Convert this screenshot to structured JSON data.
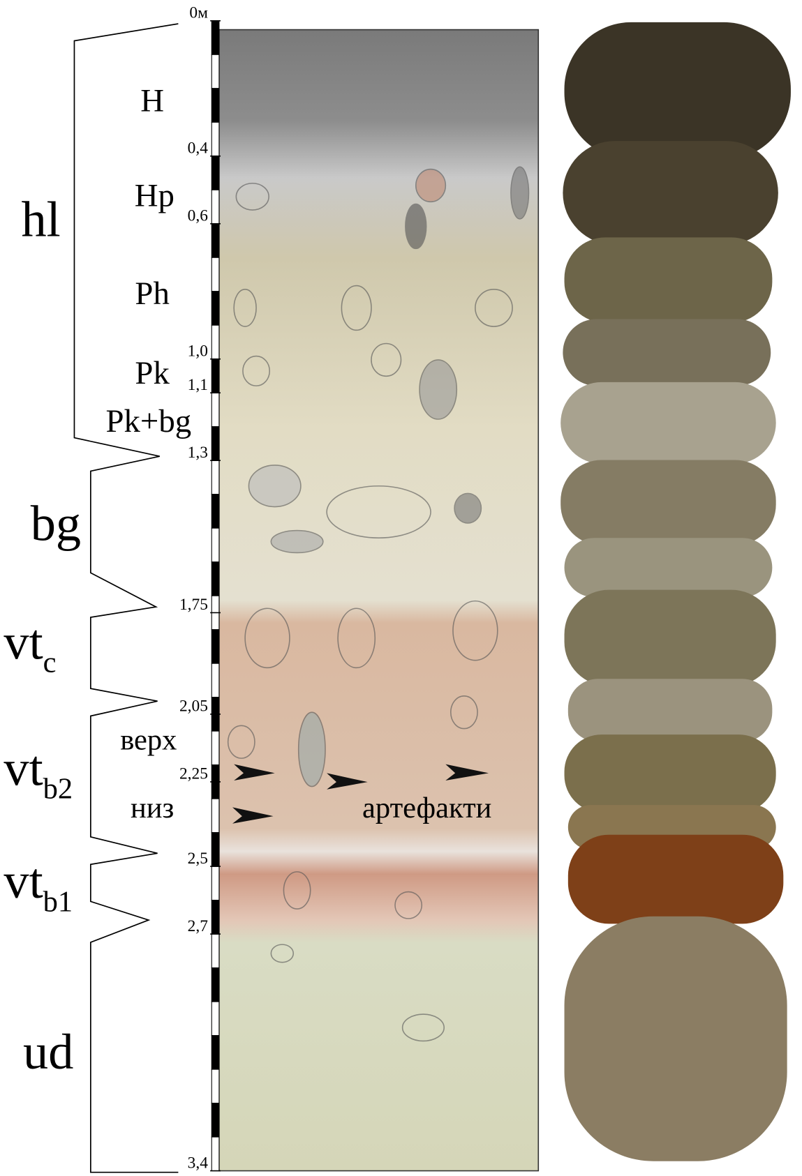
{
  "depth_marks": [
    {
      "value": 0,
      "label": "0м"
    },
    {
      "value": 0.4,
      "label": "0,4"
    },
    {
      "value": 0.6,
      "label": "0,6"
    },
    {
      "value": 1.0,
      "label": "1,0"
    },
    {
      "value": 1.1,
      "label": "1,1"
    },
    {
      "value": 1.3,
      "label": "1,3"
    },
    {
      "value": 1.75,
      "label": "1,75"
    },
    {
      "value": 2.05,
      "label": "2,05"
    },
    {
      "value": 2.25,
      "label": "2,25"
    },
    {
      "value": 2.5,
      "label": "2,5"
    },
    {
      "value": 2.7,
      "label": "2,7"
    },
    {
      "value": 3.4,
      "label": "3,4"
    }
  ],
  "horizons": [
    "H",
    "Hp",
    "Ph",
    "Pk",
    "Pk+bg"
  ],
  "strata": [
    {
      "label": "hl"
    },
    {
      "label": "bg"
    },
    {
      "label": "vt",
      "subscript": "c"
    },
    {
      "label": "vt",
      "subscript": "b2"
    },
    {
      "label": "vt",
      "subscript": "b1"
    },
    {
      "label": "ud"
    }
  ],
  "sublayers": [
    "верх",
    "низ"
  ],
  "annotation": "артефакти"
}
